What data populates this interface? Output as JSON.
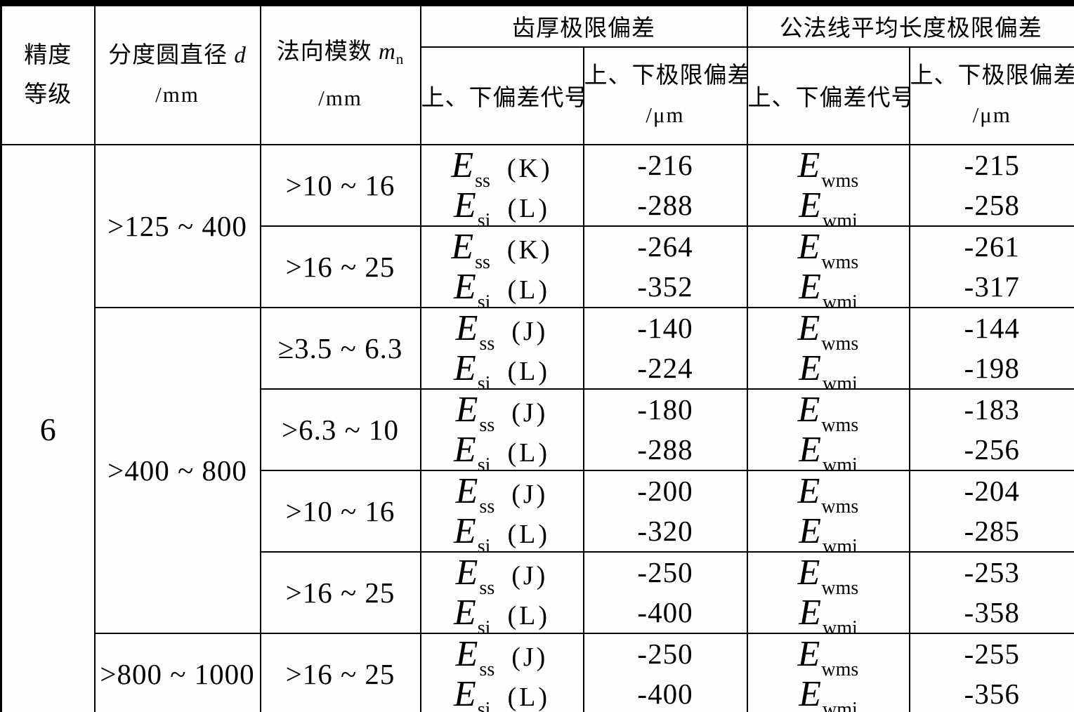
{
  "colors": {
    "line": "#000000",
    "paper": "#fefefe",
    "ink": "#000000"
  },
  "header": {
    "grade_line1": "精度",
    "grade_line2": "等级",
    "diameter_text": "分度圆直径",
    "diameter_symbol": "d",
    "diameter_unit": "/mm",
    "module_text": "法向模数",
    "module_symbol": "m",
    "module_symbol_sub": "n",
    "module_unit": "/mm",
    "group_tooth_thickness": "齿厚极限偏差",
    "group_normal_length": "公法线平均长度极限偏差",
    "code_label": "上、下偏差代号",
    "limit_label": "上、下极限偏差",
    "limit_unit": "/μm"
  },
  "grade_value": "6",
  "symbol_base": "E",
  "rows": [
    {
      "diameter": ">125 ~ 400",
      "dspan": 2,
      "module": ">10 ~ 16",
      "t_codes": [
        {
          "sub": "ss",
          "tag": "(K)"
        },
        {
          "sub": "si",
          "tag": "(L)"
        }
      ],
      "t_vals": [
        "-216",
        "-288"
      ],
      "w_codes": [
        {
          "sub": "wms"
        },
        {
          "sub": "wmi"
        }
      ],
      "w_vals": [
        "-215",
        "-258"
      ]
    },
    {
      "module": ">16 ~ 25",
      "t_codes": [
        {
          "sub": "ss",
          "tag": "(K)"
        },
        {
          "sub": "si",
          "tag": "(L)"
        }
      ],
      "t_vals": [
        "-264",
        "-352"
      ],
      "w_codes": [
        {
          "sub": "wms"
        },
        {
          "sub": "wmi"
        }
      ],
      "w_vals": [
        "-261",
        "-317"
      ]
    },
    {
      "diameter": ">400 ~ 800",
      "dspan": 4,
      "module": "≥3.5 ~ 6.3",
      "t_codes": [
        {
          "sub": "ss",
          "tag": "(J)"
        },
        {
          "sub": "si",
          "tag": "(L)"
        }
      ],
      "t_vals": [
        "-140",
        "-224"
      ],
      "w_codes": [
        {
          "sub": "wms"
        },
        {
          "sub": "wmi"
        }
      ],
      "w_vals": [
        "-144",
        "-198"
      ]
    },
    {
      "module": ">6.3 ~ 10",
      "t_codes": [
        {
          "sub": "ss",
          "tag": "(J)"
        },
        {
          "sub": "si",
          "tag": "(L)"
        }
      ],
      "t_vals": [
        "-180",
        "-288"
      ],
      "w_codes": [
        {
          "sub": "wms"
        },
        {
          "sub": "wmi"
        }
      ],
      "w_vals": [
        "-183",
        "-256"
      ]
    },
    {
      "module": ">10 ~ 16",
      "t_codes": [
        {
          "sub": "ss",
          "tag": "(J)"
        },
        {
          "sub": "si",
          "tag": "(L)"
        }
      ],
      "t_vals": [
        "-200",
        "-320"
      ],
      "w_codes": [
        {
          "sub": "wms"
        },
        {
          "sub": "wmi"
        }
      ],
      "w_vals": [
        "-204",
        "-285"
      ]
    },
    {
      "module": ">16 ~ 25",
      "t_codes": [
        {
          "sub": "ss",
          "tag": "(J)"
        },
        {
          "sub": "si",
          "tag": "(L)"
        }
      ],
      "t_vals": [
        "-250",
        "-400"
      ],
      "w_codes": [
        {
          "sub": "wms"
        },
        {
          "sub": "wmi"
        }
      ],
      "w_vals": [
        "-253",
        "-358"
      ]
    },
    {
      "diameter": ">800 ~ 1000",
      "dspan": 1,
      "module": ">16 ~ 25",
      "t_codes": [
        {
          "sub": "ss",
          "tag": "(J)"
        },
        {
          "sub": "si",
          "tag": "(L)"
        }
      ],
      "t_vals": [
        "-250",
        "-400"
      ],
      "w_codes": [
        {
          "sub": "wms"
        },
        {
          "sub": "wmi"
        }
      ],
      "w_vals": [
        "-255",
        "-356"
      ]
    }
  ]
}
